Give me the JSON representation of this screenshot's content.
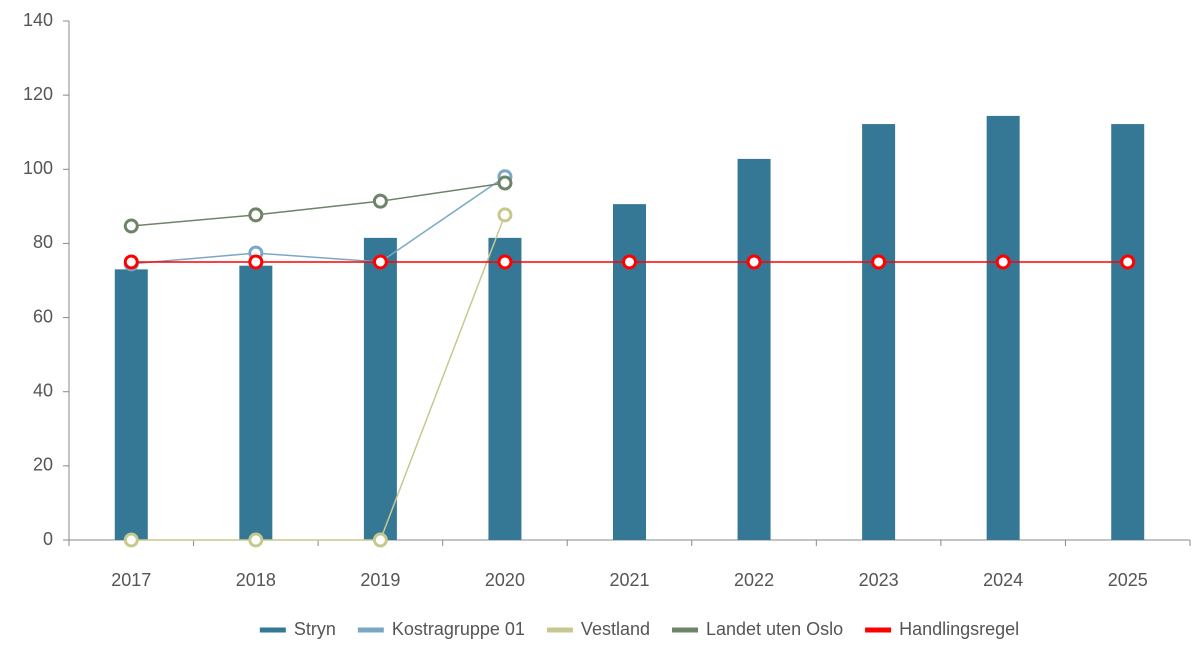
{
  "chart_data": {
    "type": "combo",
    "categories": [
      "2017",
      "2018",
      "2019",
      "2020",
      "2021",
      "2022",
      "2023",
      "2024",
      "2025"
    ],
    "series": [
      {
        "name": "Stryn",
        "type": "bar",
        "color": "#347896",
        "values": [
          73,
          74,
          81.5,
          81.5,
          90.6,
          102.8,
          112.2,
          114.4,
          112.2
        ]
      },
      {
        "name": "Kostragruppe 01",
        "type": "line",
        "color": "#7aa8c4",
        "values": [
          74.5,
          77.4,
          75,
          98,
          null,
          null,
          null,
          null,
          null
        ]
      },
      {
        "name": "Vestland",
        "type": "line",
        "color": "#c8c88e",
        "values": [
          0,
          0,
          0,
          87.7,
          null,
          null,
          null,
          null,
          null
        ]
      },
      {
        "name": "Landet uten Oslo",
        "type": "line",
        "color": "#6e8468",
        "values": [
          84.7,
          87.7,
          91.4,
          96.3,
          null,
          null,
          null,
          null,
          null
        ]
      },
      {
        "name": "Handlingsregel",
        "type": "line",
        "color": "#ff0000",
        "values": [
          75,
          75,
          75,
          75,
          75,
          75,
          75,
          75,
          75
        ]
      }
    ],
    "ylim": [
      0,
      140
    ],
    "yticks": [
      0,
      20,
      40,
      60,
      80,
      100,
      120,
      140
    ],
    "grid": false,
    "legend": "bottom"
  }
}
